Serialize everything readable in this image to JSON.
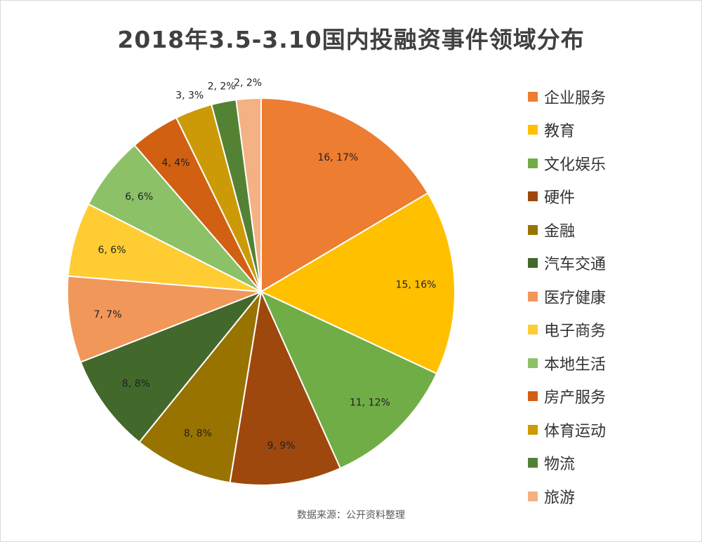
{
  "chart_data": {
    "type": "pie",
    "title": "2018年3.5-3.10国内投融资事件领域分布",
    "source": "数据来源：公开资料整理",
    "categories": [
      "企业服务",
      "教育",
      "文化娱乐",
      "硬件",
      "金融",
      "汽车交通",
      "医疗健康",
      "电子商务",
      "本地生活",
      "房产服务",
      "体育运动",
      "物流",
      "旅游"
    ],
    "values": [
      16,
      15,
      11,
      9,
      8,
      8,
      7,
      6,
      6,
      4,
      3,
      2,
      2
    ],
    "data_labels": [
      "16, 17%",
      "15, 16%",
      "11, 12%",
      "9, 9%",
      "8, 8%",
      "8, 8%",
      "7, 7%",
      "6, 6%",
      "6, 6%",
      "4, 4%",
      "3, 3%",
      "2, 2%",
      "2, 2%"
    ],
    "colors": [
      "#ED7D31",
      "#FFC000",
      "#70AD47",
      "#9E480E",
      "#997300",
      "#43682B",
      "#F1975A",
      "#FFCD33",
      "#8CC168",
      "#D26012",
      "#CC9A06",
      "#548235",
      "#F4B183"
    ],
    "start_angle": "12 o'clock",
    "direction": "clockwise",
    "legend_position": "right"
  }
}
